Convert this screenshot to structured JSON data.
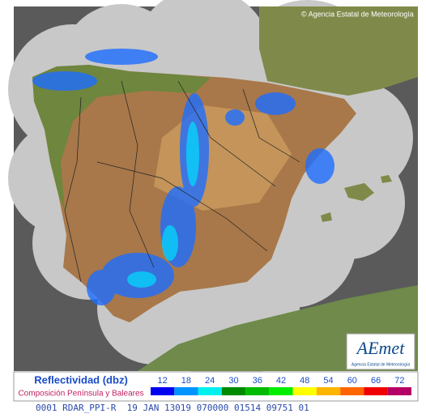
{
  "header": {
    "copyright": "© Agencia Estatal de Meteorología"
  },
  "logo": {
    "name": "AEmet",
    "caption": "Agencia Estatal de Meteorología"
  },
  "legend": {
    "title": "Reflectividad (dbz)",
    "subtitle": "Composición Península y Baleares",
    "items": [
      {
        "value": 12,
        "color": "#0000f0"
      },
      {
        "value": 18,
        "color": "#0094ff"
      },
      {
        "value": 24,
        "color": "#00f0f0"
      },
      {
        "value": 30,
        "color": "#008a00"
      },
      {
        "value": 36,
        "color": "#00bb00"
      },
      {
        "value": 42,
        "color": "#00ee00"
      },
      {
        "value": 48,
        "color": "#ffff00"
      },
      {
        "value": 54,
        "color": "#ffb400"
      },
      {
        "value": 60,
        "color": "#ff6400"
      },
      {
        "value": 66,
        "color": "#f00000"
      },
      {
        "value": 72,
        "color": "#b40064"
      }
    ]
  },
  "footer": {
    "code": "0001 RDAR_PPI-R  19 JAN 13019 070000 01514 09751 01"
  }
}
